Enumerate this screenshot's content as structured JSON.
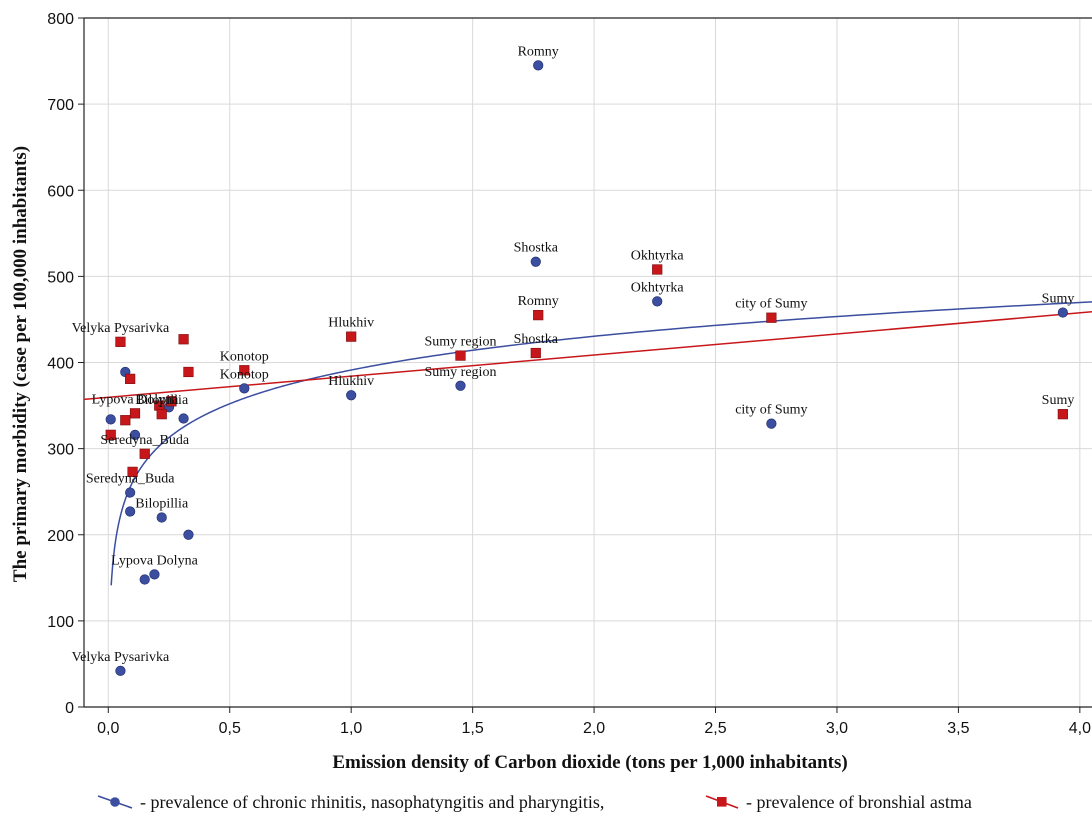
{
  "chart_data": {
    "type": "scatter",
    "title": "",
    "xlabel": "Emission density of Carbon dioxide (tons per 1,000 inhabitants)",
    "ylabel": "The primary morbidity (case per 100,000 inhabitants)",
    "xlim": [
      -0.1,
      4.05
    ],
    "ylim": [
      0,
      800
    ],
    "x_ticks": [
      "0,0",
      "0,5",
      "1,0",
      "1,5",
      "2,0",
      "2,5",
      "3,0",
      "3,5",
      "4,0"
    ],
    "x_tick_values": [
      0,
      0.5,
      1.0,
      1.5,
      2.0,
      2.5,
      3.0,
      3.5,
      4.0
    ],
    "y_ticks": [
      "0",
      "100",
      "200",
      "300",
      "400",
      "500",
      "600",
      "700",
      "800"
    ],
    "y_tick_values": [
      0,
      100,
      200,
      300,
      400,
      500,
      600,
      700,
      800
    ],
    "grid": true,
    "legend_position": "bottom",
    "series": [
      {
        "name": "- prevalence of chronic rhinitis, nasophatyngitis and pharyngitis,",
        "color": "#3b4ea0",
        "marker": "circle",
        "fit": "logarithmic",
        "points": [
          {
            "x": 0.01,
            "y": 334,
            "label": ""
          },
          {
            "x": 0.07,
            "y": 389,
            "label": ""
          },
          {
            "x": 0.11,
            "y": 316,
            "label": ""
          },
          {
            "x": 0.25,
            "y": 348,
            "label": ""
          },
          {
            "x": 0.31,
            "y": 335,
            "label": ""
          },
          {
            "x": 0.09,
            "y": 249,
            "label": "Seredyna_Buda"
          },
          {
            "x": 0.09,
            "y": 227,
            "label": ""
          },
          {
            "x": 0.22,
            "y": 220,
            "label": "Bilopillia"
          },
          {
            "x": 0.33,
            "y": 200,
            "label": ""
          },
          {
            "x": 0.19,
            "y": 154,
            "label": "Lypova Dolyna"
          },
          {
            "x": 0.15,
            "y": 148,
            "label": ""
          },
          {
            "x": 0.05,
            "y": 42,
            "label": "Velyka Pysarivka"
          },
          {
            "x": 0.56,
            "y": 370,
            "label": "Konotop"
          },
          {
            "x": 1.0,
            "y": 362,
            "label": "Hlukhiv"
          },
          {
            "x": 1.45,
            "y": 373,
            "label": "Sumy region"
          },
          {
            "x": 1.76,
            "y": 517,
            "label": "Shostka"
          },
          {
            "x": 1.77,
            "y": 745,
            "label": "Romny"
          },
          {
            "x": 2.26,
            "y": 471,
            "label": "Okhtyrka"
          },
          {
            "x": 2.73,
            "y": 329,
            "label": "city of Sumy"
          },
          {
            "x": 3.93,
            "y": 458,
            "label": "Sumy"
          }
        ]
      },
      {
        "name": "- prevalence of bronshial astma",
        "color": "#c8171b",
        "marker": "square",
        "fit": "linear",
        "points": [
          {
            "x": 0.01,
            "y": 316,
            "label": ""
          },
          {
            "x": 0.05,
            "y": 424,
            "label": "Velyka Pysarivka"
          },
          {
            "x": 0.09,
            "y": 381,
            "label": ""
          },
          {
            "x": 0.07,
            "y": 333,
            "label": ""
          },
          {
            "x": 0.11,
            "y": 341,
            "label": "Lypova Dolyna"
          },
          {
            "x": 0.21,
            "y": 350,
            "label": ""
          },
          {
            "x": 0.22,
            "y": 340,
            "label": "Bilopillia"
          },
          {
            "x": 0.26,
            "y": 355,
            "label": ""
          },
          {
            "x": 0.31,
            "y": 427,
            "label": ""
          },
          {
            "x": 0.33,
            "y": 389,
            "label": ""
          },
          {
            "x": 0.15,
            "y": 294,
            "label": "Seredyna_Buda"
          },
          {
            "x": 0.1,
            "y": 273,
            "label": ""
          },
          {
            "x": 0.56,
            "y": 391,
            "label": "Konotop"
          },
          {
            "x": 1.0,
            "y": 430,
            "label": "Hlukhiv"
          },
          {
            "x": 1.45,
            "y": 408,
            "label": "Sumy region"
          },
          {
            "x": 1.77,
            "y": 455,
            "label": "Romny"
          },
          {
            "x": 1.76,
            "y": 411,
            "label": "Shostka"
          },
          {
            "x": 2.26,
            "y": 508,
            "label": "Okhtyrka"
          },
          {
            "x": 2.73,
            "y": 452,
            "label": "city of Sumy"
          },
          {
            "x": 3.93,
            "y": 340,
            "label": "Sumy"
          }
        ]
      }
    ]
  }
}
